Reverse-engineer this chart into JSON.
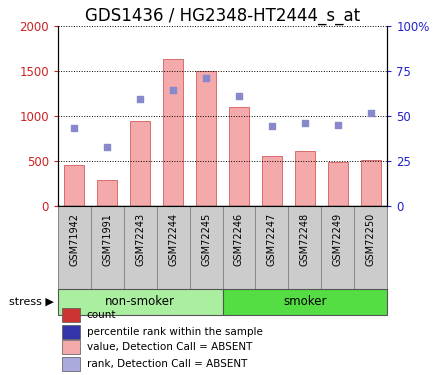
{
  "title": "GDS1436 / HG2348-HT2444_s_at",
  "samples": [
    "GSM71942",
    "GSM71991",
    "GSM72243",
    "GSM72244",
    "GSM72245",
    "GSM72246",
    "GSM72247",
    "GSM72248",
    "GSM72249",
    "GSM72250"
  ],
  "bar_values": [
    460,
    295,
    950,
    1640,
    1500,
    1100,
    560,
    610,
    490,
    515
  ],
  "dot_values": [
    43.5,
    33.0,
    59.5,
    64.5,
    71.5,
    61.0,
    44.75,
    46.5,
    45.0,
    52.0
  ],
  "bar_color": "#F4AAAA",
  "dot_color": "#8888CC",
  "bar_edge_color": "#CC4444",
  "ylim_left": [
    0,
    2000
  ],
  "ylim_right": [
    0,
    100
  ],
  "yticks_left": [
    0,
    500,
    1000,
    1500,
    2000
  ],
  "ytick_labels_left": [
    "0",
    "500",
    "1000",
    "1500",
    "2000"
  ],
  "ytick_labels_right": [
    "0",
    "25",
    "50",
    "75",
    "100%"
  ],
  "yticks_right": [
    0,
    25,
    50,
    75,
    100
  ],
  "groups": [
    {
      "label": "non-smoker",
      "start": 0,
      "end": 5
    },
    {
      "label": "smoker",
      "start": 5,
      "end": 10
    }
  ],
  "group_color_nonsmoker": "#AAEEA0",
  "group_color_smoker": "#55DD44",
  "stress_label": "stress",
  "tick_label_color_left": "#CC2222",
  "tick_label_color_right": "#2222CC",
  "title_fontsize": 12,
  "tick_fontsize": 8.5
}
